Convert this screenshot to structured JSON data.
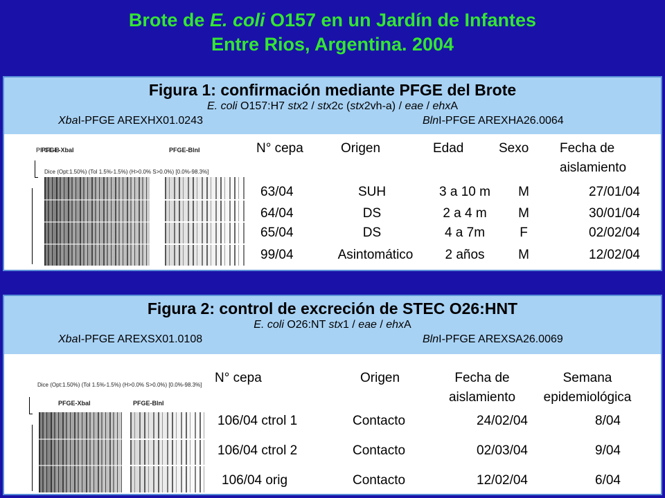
{
  "header": {
    "line1_pre": "Brote de ",
    "line1_em": "E. coli",
    "line1_post": " O157 en un Jardín de Infantes",
    "line2": "Entre Rios, Argentina. 2004"
  },
  "figure1": {
    "title": "Figura 1: confirmación mediante PFGE del Brote",
    "subtitle_em1": "E. coli",
    "subtitle_mid1": " O157:H7 ",
    "subtitle_em2": "stx",
    "subtitle_mid2": "2 / ",
    "subtitle_em3": "stx",
    "subtitle_mid3": "2c (",
    "subtitle_em4": "stx",
    "subtitle_mid4": "2vh-a) / ",
    "subtitle_em5": "eae",
    "subtitle_mid5": " / ",
    "subtitle_em6": "ehx",
    "subtitle_end": "A",
    "pfge_left_em": "Xba",
    "pfge_left": "I-PFGE AREXHX01.0243",
    "pfge_right_em": "Bln",
    "pfge_right": "I-PFGE AREXHA26.0064",
    "gel_label_left": "PFGE-XbaI",
    "gel_label_left_overlap": "PFGE-B",
    "gel_label_right": "PFGE-BlnI",
    "dice_text": "Dice (Opt:1.50%) (Tol 1.5%-1.5%) (H>0.0% S>0.0%) [0.0%-98.3%]",
    "columns": [
      "N° cepa",
      "Origen",
      "Edad",
      "Sexo",
      "Fecha de",
      "aislamiento"
    ],
    "rows": [
      {
        "cepa": "63/04",
        "origen": "SUH",
        "edad": "3 a 10 m",
        "sexo": "M",
        "fecha": "27/01/04"
      },
      {
        "cepa": "64/04",
        "origen": "DS",
        "edad": "2 a 4 m",
        "sexo": "M",
        "fecha": "30/01/04"
      },
      {
        "cepa": "65/04",
        "origen": "DS",
        "edad": "4 a 7m",
        "sexo": "F",
        "fecha": "02/02/04"
      },
      {
        "cepa": "99/04",
        "origen": "Asintomático",
        "edad": "2 años",
        "sexo": "M",
        "fecha": "12/02/04"
      }
    ]
  },
  "figure2": {
    "title": "Figura 2: control de excreción de STEC O26:HNT",
    "subtitle_em1": "E. coli",
    "subtitle_mid1": " O26:NT ",
    "subtitle_em2": "stx",
    "subtitle_mid2": "1 / ",
    "subtitle_em3": "eae",
    "subtitle_mid3": " / ",
    "subtitle_em4": "ehx",
    "subtitle_end": "A",
    "pfge_left_em": "Xba",
    "pfge_left": "I-PFGE AREXSX01.0108",
    "pfge_right_em": "Bln",
    "pfge_right": "I-PFGE AREXSA26.0069",
    "gel_label_left": "PFGE-XbaI",
    "gel_label_right": "PFGE-BlnI",
    "dice_text": "Dice (Opt:1.50%)  (Tol 1.5%-1.5%)  (H>0.0% S>0.0%)  [0.0%-98.3%]",
    "columns": [
      "N° cepa",
      "Origen",
      "Fecha de",
      "aislamiento",
      "Semana",
      "epidemiológica"
    ],
    "rows": [
      {
        "cepa": "106/04 ctrol 1",
        "origen": "Contacto",
        "fecha": "24/02/04",
        "semana": "8/04"
      },
      {
        "cepa": "106/04 ctrol 2",
        "origen": "Contacto",
        "fecha": "02/03/04",
        "semana": "9/04"
      },
      {
        "cepa": "106/04 orig",
        "origen": "Contacto",
        "fecha": "12/02/04",
        "semana": "6/04"
      }
    ]
  }
}
